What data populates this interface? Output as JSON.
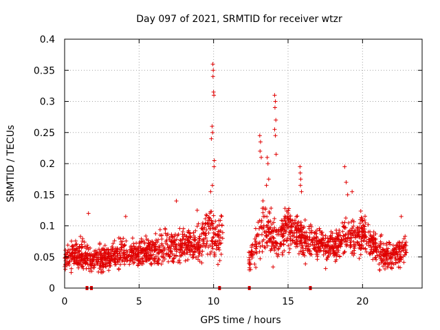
{
  "chart_data": {
    "type": "scatter",
    "title": "Day 097 of 2021, SRMTID for receiver wtzr",
    "xlabel": "GPS time / hours",
    "ylabel": "SRMTID / TECUs",
    "xlim": [
      0,
      24
    ],
    "ylim": [
      0,
      0.4
    ],
    "grid": true,
    "legend": "none",
    "marker": "plus",
    "color": "#e00000",
    "x_ticks": [
      0,
      5,
      10,
      15,
      20
    ],
    "x_tick_labels": [
      "0",
      "5",
      "10",
      "15",
      "20"
    ],
    "y_ticks": [
      0,
      0.05,
      0.1,
      0.15,
      0.2,
      0.25,
      0.3,
      0.35,
      0.4
    ],
    "y_tick_labels": [
      "0",
      "0.05",
      "0.1",
      "0.15",
      "0.2",
      "0.25",
      "0.3",
      "0.35",
      "0.4"
    ],
    "data_gap_markers_hours": [
      1.5,
      1.8,
      10.4,
      12.4,
      16.5
    ],
    "envelope": {
      "description": "approximate median and spread of SRMTID values per hour bin",
      "hours": [
        0.0,
        1.0,
        2.0,
        3.0,
        4.0,
        5.0,
        6.0,
        7.0,
        8.0,
        9.0,
        9.8,
        10.3,
        10.6,
        12.4,
        13.0,
        13.5,
        14.0,
        14.5,
        15.0,
        15.5,
        16.0,
        17.0,
        18.0,
        19.0,
        20.0,
        21.0,
        22.0,
        22.9
      ],
      "median": [
        0.05,
        0.055,
        0.045,
        0.05,
        0.06,
        0.055,
        0.06,
        0.07,
        0.065,
        0.07,
        0.1,
        0.075,
        0.09,
        0.04,
        0.08,
        0.1,
        0.08,
        0.085,
        0.1,
        0.09,
        0.075,
        0.07,
        0.065,
        0.085,
        0.085,
        0.06,
        0.05,
        0.06
      ],
      "spread": [
        0.02,
        0.02,
        0.018,
        0.02,
        0.022,
        0.02,
        0.022,
        0.025,
        0.025,
        0.025,
        0.04,
        0.03,
        0.03,
        0.018,
        0.03,
        0.04,
        0.035,
        0.03,
        0.03,
        0.03,
        0.025,
        0.025,
        0.025,
        0.03,
        0.03,
        0.022,
        0.02,
        0.02
      ]
    },
    "highlight_points": [
      {
        "x": 9.95,
        "y": 0.36
      },
      {
        "x": 9.98,
        "y": 0.35
      },
      {
        "x": 9.96,
        "y": 0.34
      },
      {
        "x": 10.0,
        "y": 0.315
      },
      {
        "x": 10.02,
        "y": 0.31
      },
      {
        "x": 9.9,
        "y": 0.26
      },
      {
        "x": 9.93,
        "y": 0.25
      },
      {
        "x": 9.85,
        "y": 0.24
      },
      {
        "x": 10.05,
        "y": 0.205
      },
      {
        "x": 10.03,
        "y": 0.195
      },
      {
        "x": 9.92,
        "y": 0.165
      },
      {
        "x": 9.8,
        "y": 0.155
      },
      {
        "x": 14.1,
        "y": 0.31
      },
      {
        "x": 14.15,
        "y": 0.3
      },
      {
        "x": 14.12,
        "y": 0.29
      },
      {
        "x": 14.18,
        "y": 0.27
      },
      {
        "x": 14.1,
        "y": 0.255
      },
      {
        "x": 14.15,
        "y": 0.245
      },
      {
        "x": 14.2,
        "y": 0.215
      },
      {
        "x": 13.1,
        "y": 0.245
      },
      {
        "x": 13.15,
        "y": 0.235
      },
      {
        "x": 13.12,
        "y": 0.22
      },
      {
        "x": 13.2,
        "y": 0.21
      },
      {
        "x": 13.6,
        "y": 0.21
      },
      {
        "x": 13.65,
        "y": 0.2
      },
      {
        "x": 13.7,
        "y": 0.175
      },
      {
        "x": 13.55,
        "y": 0.165
      },
      {
        "x": 15.8,
        "y": 0.195
      },
      {
        "x": 15.82,
        "y": 0.185
      },
      {
        "x": 15.85,
        "y": 0.175
      },
      {
        "x": 15.83,
        "y": 0.165
      },
      {
        "x": 15.9,
        "y": 0.155
      },
      {
        "x": 18.8,
        "y": 0.195
      },
      {
        "x": 18.9,
        "y": 0.17
      },
      {
        "x": 19.3,
        "y": 0.155
      },
      {
        "x": 19.0,
        "y": 0.15
      },
      {
        "x": 7.5,
        "y": 0.14
      },
      {
        "x": 8.9,
        "y": 0.125
      },
      {
        "x": 1.6,
        "y": 0.12
      },
      {
        "x": 4.1,
        "y": 0.115
      },
      {
        "x": 22.6,
        "y": 0.115
      }
    ]
  }
}
